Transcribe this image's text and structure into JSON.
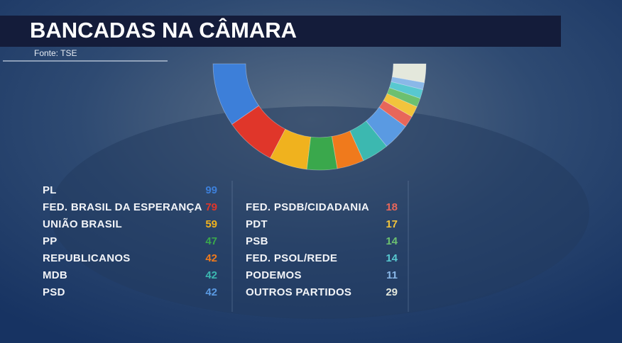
{
  "chart_data": {
    "type": "half-donut",
    "title": "BANCADAS NA CÂMARA",
    "source": "Fonte: TSE",
    "categories": [
      "PL",
      "FED. BRASIL DA ESPERANÇA",
      "UNIÃO BRASIL",
      "PP",
      "REPUBLICANOS",
      "MDB",
      "PSD",
      "FED. PSDB/CIDADANIA",
      "PDT",
      "PSB",
      "FED. PSOL/REDE",
      "PODEMOS",
      "OUTROS PARTIDOS"
    ],
    "values": [
      99,
      79,
      59,
      47,
      42,
      42,
      42,
      18,
      17,
      14,
      14,
      11,
      29
    ],
    "colors": [
      "#3d7fd9",
      "#e0362a",
      "#f0b21e",
      "#3aa84c",
      "#f07a1c",
      "#3cb8b0",
      "#5a9ae2",
      "#e8665a",
      "#f2c43c",
      "#6cc070",
      "#58c8d0",
      "#8ab8e8",
      "#e4e8dc"
    ]
  }
}
